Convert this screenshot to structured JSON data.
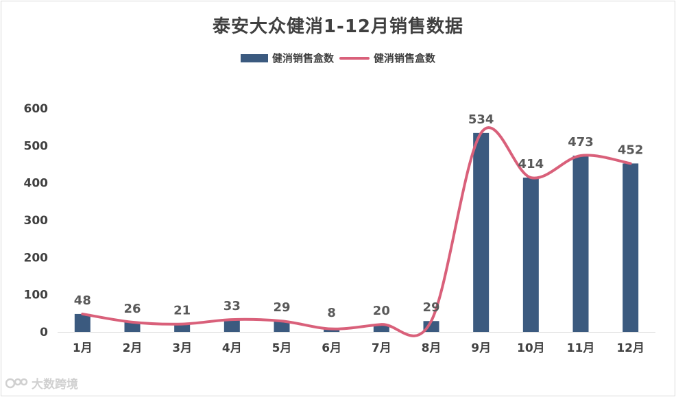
{
  "chart_data": {
    "type": "bar",
    "title": "泰安大众健消1-12月销售数据",
    "categories": [
      "1月",
      "2月",
      "3月",
      "4月",
      "5月",
      "6月",
      "7月",
      "8月",
      "9月",
      "10月",
      "11月",
      "12月"
    ],
    "series": [
      {
        "name": "健消销售盒数",
        "kind": "bar",
        "color": "#3b5a7f",
        "values": [
          48,
          26,
          21,
          33,
          29,
          8,
          20,
          29,
          534,
          414,
          473,
          452
        ]
      },
      {
        "name": "健消销售盒数",
        "kind": "line",
        "color": "#d9607a",
        "values": [
          48,
          26,
          21,
          33,
          29,
          8,
          20,
          29,
          534,
          414,
          473,
          452
        ]
      }
    ],
    "ylim": [
      0,
      600
    ],
    "yticks": [
      0,
      100,
      200,
      300,
      400,
      500,
      600
    ],
    "xlabel": "",
    "ylabel": "",
    "grid": false,
    "legend": "top-center",
    "data_labels": true
  },
  "watermark": {
    "text": "大数跨境"
  }
}
